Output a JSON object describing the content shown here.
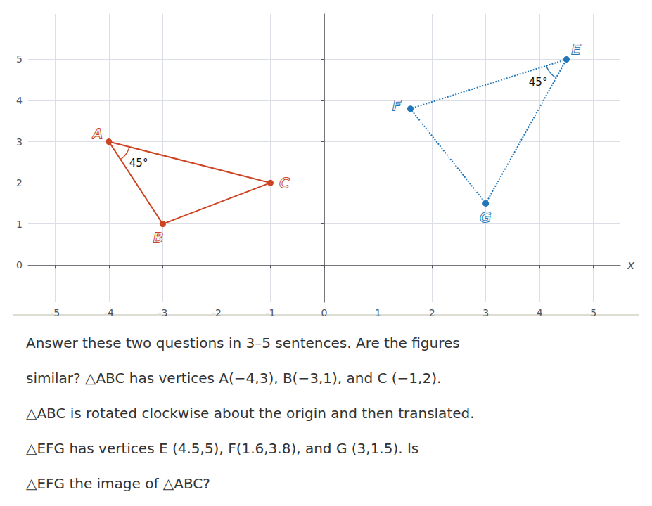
{
  "chart_data": {
    "type": "line",
    "xlabel": "x",
    "xlim": [
      -5.5,
      5.5
    ],
    "ylim": [
      -0.9,
      6.1
    ],
    "xticks": [
      -5,
      -4,
      -3,
      -2,
      -1,
      0,
      1,
      2,
      3,
      4,
      5
    ],
    "yticks": [
      0,
      1,
      2,
      3,
      4,
      5
    ],
    "grid": true,
    "series": [
      {
        "x": [
          -4,
          -3,
          -1
        ],
        "values": [
          3,
          1,
          2
        ],
        "labels": [
          "A",
          "B",
          "C"
        ],
        "color": "#cc4422",
        "line_style": "solid",
        "marker": "circle",
        "angle_label": "45°"
      },
      {
        "x": [
          4.5,
          1.6,
          3
        ],
        "values": [
          5,
          3.8,
          1.5
        ],
        "labels": [
          "E",
          "F",
          "G"
        ],
        "color": "#2277bb",
        "line_style": "dotted",
        "marker": "circle",
        "angle_label": "45°"
      }
    ],
    "annotations": [
      "Answer these two questions in 3–5 sentences. Are the figures",
      "similar? △ABC has vertices A(−4,3), B(−3,1), and C (−1,2).",
      "△ABC is rotated clockwise about the origin and then translated.",
      "△EFG has vertices E (4.5,5), F(1.6,3.8), and G (3,1.5). Is",
      "△EFG the image of △ABC?"
    ]
  }
}
